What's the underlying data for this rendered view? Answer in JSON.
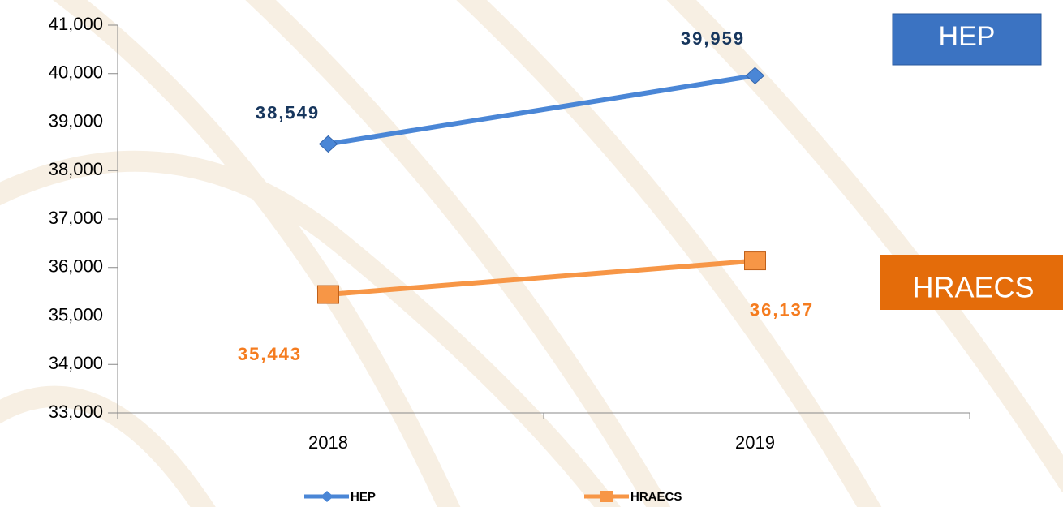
{
  "chart_data": {
    "type": "line",
    "categories": [
      "2018",
      "2019"
    ],
    "series": [
      {
        "name": "HEP",
        "color": "#4a86d6",
        "label_color": "#17365d",
        "values": [
          38549,
          39959
        ],
        "value_labels": [
          "38,549",
          "39,959"
        ]
      },
      {
        "name": "HRAECS",
        "color": "#f79646",
        "label_color": "#f57c1f",
        "values": [
          35443,
          36137
        ],
        "value_labels": [
          "35,443",
          "36,137"
        ]
      }
    ],
    "ylim": [
      33000,
      41000
    ],
    "yticks": [
      {
        "value": 33000,
        "label": "33,000"
      },
      {
        "value": 34000,
        "label": "34,000"
      },
      {
        "value": 35000,
        "label": "35,000"
      },
      {
        "value": 36000,
        "label": "36,000"
      },
      {
        "value": 37000,
        "label": "37,000"
      },
      {
        "value": 38000,
        "label": "38,000"
      },
      {
        "value": 39000,
        "label": "39,000"
      },
      {
        "value": 40000,
        "label": "40,000"
      },
      {
        "value": 41000,
        "label": "41,000"
      }
    ],
    "grid": false,
    "legend": "bottom",
    "annotations": [
      {
        "text": "HEP",
        "color": "#3b73c2"
      },
      {
        "text": "HRAECS",
        "color": "#e46c0a"
      }
    ]
  }
}
